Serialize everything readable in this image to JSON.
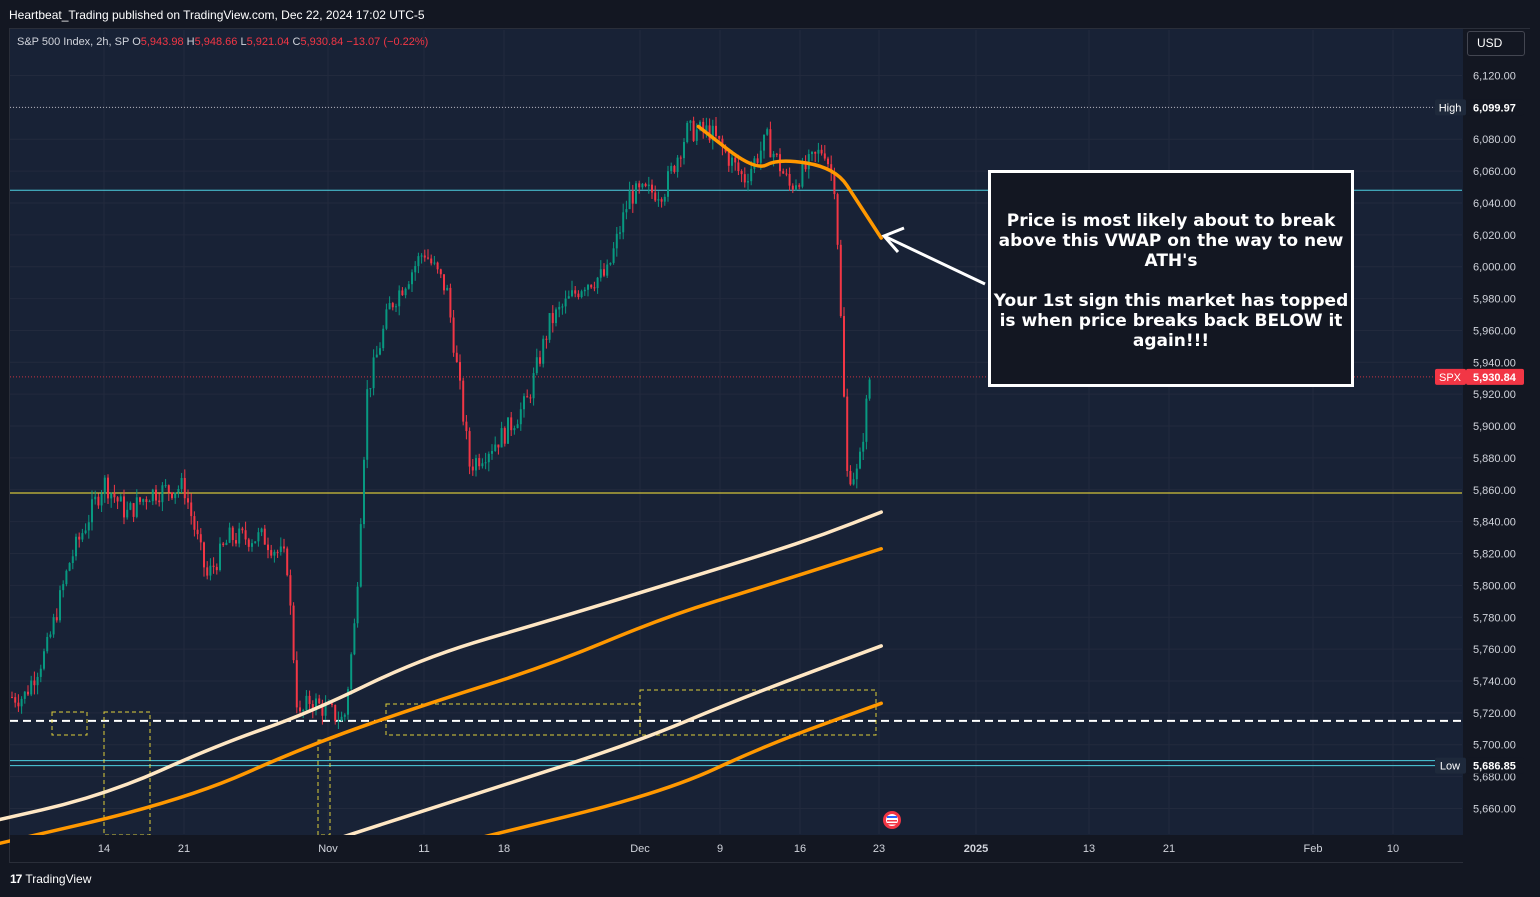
{
  "header": {
    "publish_text": "Heartbeat_Trading published on TradingView.com, Dec 22, 2024 17:02 UTC-5"
  },
  "symbol": {
    "title": "S&P 500 Index, 2h, SP",
    "open_label": "O",
    "open": "5,943.98",
    "high_label": "H",
    "high": "5,948.66",
    "low_label": "L",
    "low": "5,921.04",
    "close_label": "C",
    "close": "5,930.84",
    "change": "−13.07 (−0.22%)"
  },
  "currency_button": "USD",
  "footer": {
    "brand": "TradingView",
    "brand_mark": "17"
  },
  "annotation": {
    "line1": "Price is most likely about to break above this VWAP on the way to new ATH's",
    "line2": "Your 1st sign this market has topped is when price breaks back BELOW it again!!!"
  },
  "colors": {
    "background": "#182236",
    "up": "#089981",
    "down": "#f23645",
    "vwap_orange": "#ff9800",
    "vwap_cream": "#ffe7c4",
    "level_cyan": "#4dd0e1",
    "level_yellow": "#ffeb3b"
  },
  "chart_data": {
    "type": "line",
    "title": "S&P 500 Index, 2h, SP",
    "ylim": [
      5650,
      6135
    ],
    "y_ticks": [
      6120,
      6100,
      6080,
      6060,
      6040,
      6020,
      6000,
      5980,
      5960,
      5940,
      5920,
      5900,
      5880,
      5860,
      5840,
      5820,
      5800,
      5780,
      5760,
      5740,
      5720,
      5700,
      5680,
      5660
    ],
    "y_tick_labels": [
      "6,120.00",
      "6,100.00",
      "6,080.00",
      "6,060.00",
      "6,040.00",
      "6,020.00",
      "6,000.00",
      "5,980.00",
      "5,960.00",
      "5,940.00",
      "5,920.00",
      "5,900.00",
      "5,880.00",
      "5,860.00",
      "5,840.00",
      "5,820.00",
      "5,800.00",
      "5,780.00",
      "5,760.00",
      "5,740.00",
      "5,720.00",
      "5,700.00",
      "5,680.00",
      "5,660.00"
    ],
    "x_labels": [
      "14",
      "21",
      "Nov",
      "11",
      "18",
      "Dec",
      "9",
      "16",
      "23",
      "2025",
      "13",
      "21",
      "Feb",
      "10"
    ],
    "x_label_dates": [
      "2024-10-14",
      "2024-10-21",
      "2024-11-01",
      "2024-11-11",
      "2024-11-18",
      "2024-12-01",
      "2024-12-09",
      "2024-12-16",
      "2024-12-23",
      "2025-01-01",
      "2025-01-13",
      "2025-01-21",
      "2025-02-01",
      "2025-02-10"
    ],
    "x_label_positions": [
      104,
      184,
      328,
      424,
      504,
      640,
      720,
      800,
      879,
      976,
      1089,
      1169,
      1313,
      1393
    ],
    "price_path": [
      [
        "2024-10-07",
        5730
      ],
      [
        "2024-10-09",
        5760
      ],
      [
        "2024-10-11",
        5815
      ],
      [
        "2024-10-14",
        5865
      ],
      [
        "2024-10-16",
        5845
      ],
      [
        "2024-10-18",
        5858
      ],
      [
        "2024-10-21",
        5862
      ],
      [
        "2024-10-23",
        5805
      ],
      [
        "2024-10-25",
        5830
      ],
      [
        "2024-10-28",
        5830
      ],
      [
        "2024-10-30",
        5815
      ],
      [
        "2024-10-31",
        5715
      ],
      [
        "2024-11-01",
        5728
      ],
      [
        "2024-11-04",
        5715
      ],
      [
        "2024-11-05",
        5780
      ],
      [
        "2024-11-06",
        5920
      ],
      [
        "2024-11-08",
        5975
      ],
      [
        "2024-11-11",
        6010
      ],
      [
        "2024-11-13",
        5985
      ],
      [
        "2024-11-15",
        5875
      ],
      [
        "2024-11-18",
        5895
      ],
      [
        "2024-11-20",
        5915
      ],
      [
        "2024-11-22",
        5965
      ],
      [
        "2024-11-25",
        5990
      ],
      [
        "2024-11-27",
        5995
      ],
      [
        "2024-11-29",
        6045
      ],
      [
        "2024-12-02",
        6048
      ],
      [
        "2024-12-04",
        6085
      ],
      [
        "2024-12-06",
        6085
      ],
      [
        "2024-12-09",
        6055
      ],
      [
        "2024-12-11",
        6080
      ],
      [
        "2024-12-13",
        6050
      ],
      [
        "2024-12-16",
        6075
      ],
      [
        "2024-12-17",
        6050
      ],
      [
        "2024-12-18",
        5870
      ],
      [
        "2024-12-19",
        5870
      ],
      [
        "2024-12-20",
        5930.84
      ]
    ],
    "series": [
      {
        "name": "VWAP",
        "color": "#ff9800",
        "values": [
          [
            "2024-12-05",
            6088
          ],
          [
            "2024-12-10",
            6060
          ],
          [
            "2024-12-12",
            6068
          ],
          [
            "2024-12-17",
            6062
          ],
          [
            "2024-12-19",
            6040
          ],
          [
            "2024-12-21",
            6018
          ]
        ]
      },
      {
        "name": "",
        "color": "#ffe7c4",
        "values": [
          [
            "2024-10-03",
            5650
          ],
          [
            "2024-10-14",
            5668
          ],
          [
            "2024-10-24",
            5700
          ],
          [
            "2024-11-01",
            5720
          ],
          [
            "2024-11-11",
            5755
          ],
          [
            "2024-11-22",
            5778
          ],
          [
            "2024-12-02",
            5800
          ],
          [
            "2024-12-11",
            5820
          ],
          [
            "2024-12-16",
            5832
          ],
          [
            "2024-12-21",
            5846
          ]
        ]
      },
      {
        "name": "",
        "color": "#ff9800",
        "values": [
          [
            "2024-10-03",
            5635
          ],
          [
            "2024-10-21",
            5665
          ],
          [
            "2024-11-01",
            5700
          ],
          [
            "2024-11-11",
            5725
          ],
          [
            "2024-11-22",
            5750
          ],
          [
            "2024-12-02",
            5780
          ],
          [
            "2024-12-11",
            5800
          ],
          [
            "2024-12-21",
            5823
          ]
        ]
      },
      {
        "name": "",
        "color": "#ffe7c4",
        "values": [
          [
            "2024-11-03",
            5640
          ],
          [
            "2024-11-15",
            5668
          ],
          [
            "2024-11-29",
            5700
          ],
          [
            "2024-12-09",
            5730
          ],
          [
            "2024-12-21",
            5762
          ]
        ]
      },
      {
        "name": "",
        "color": "#ff9800",
        "values": [
          [
            "2024-11-15",
            5640
          ],
          [
            "2024-12-02",
            5670
          ],
          [
            "2024-12-11",
            5700
          ],
          [
            "2024-12-21",
            5726
          ]
        ]
      }
    ],
    "levels": [
      {
        "name": "High",
        "value": 6099.97,
        "label": "6,099.97",
        "color": "#b2b5be",
        "style": "dotted"
      },
      {
        "name": "",
        "value": 6048,
        "color": "#4dd0e1",
        "style": "solid"
      },
      {
        "name": "",
        "value": 5858,
        "color": "#ffeb3b",
        "style": "solid"
      },
      {
        "name": "",
        "value": 5715,
        "color": "#ffffff",
        "style": "dashed"
      },
      {
        "name": "",
        "value": 5690,
        "color": "#4dd0e1",
        "style": "solid"
      },
      {
        "name": "Low",
        "value": 5686.85,
        "label": "5,686.85",
        "color": "#4dd0e1",
        "style": "solid"
      },
      {
        "name": "SPX",
        "value": 5930.84,
        "label": "5,930.84",
        "color": "#f23645",
        "style": "dotted"
      }
    ],
    "grid": true,
    "last_price": 5930.84
  }
}
